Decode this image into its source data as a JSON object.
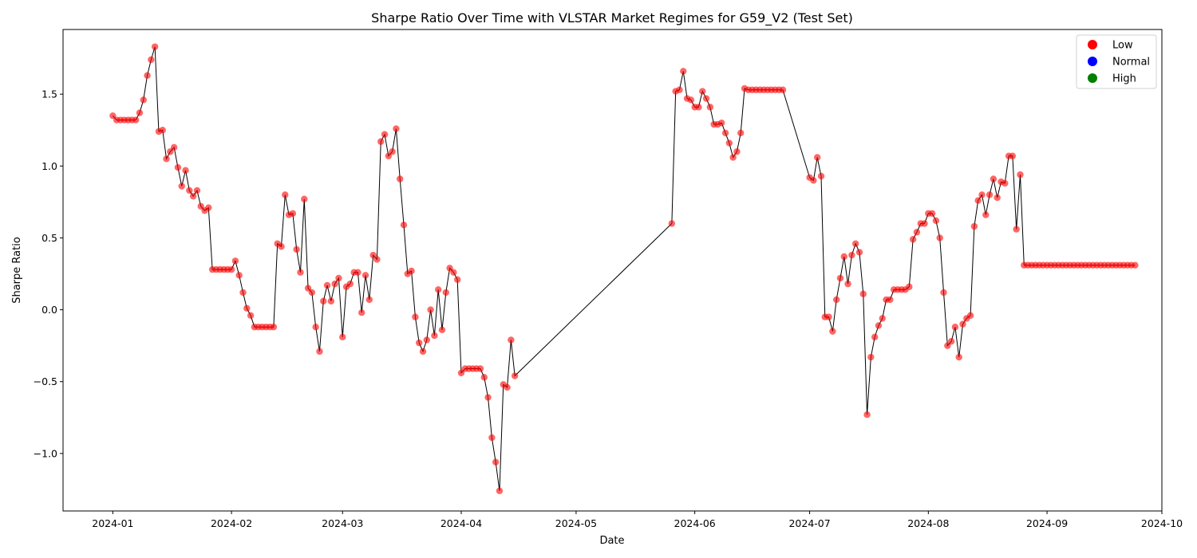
{
  "chart_data": {
    "type": "line",
    "title": "Sharpe Ratio Over Time with VLSTAR Market Regimes for G59_V2 (Test Set)",
    "xlabel": "Date",
    "ylabel": "Sharpe Ratio",
    "xlim": [
      "2023-12-19",
      "2024-10-01"
    ],
    "ylim": [
      -1.4,
      1.95
    ],
    "x_ticks": [
      "2024-01",
      "2024-02",
      "2024-03",
      "2024-04",
      "2024-05",
      "2024-06",
      "2024-07",
      "2024-08",
      "2024-09",
      "2024-10"
    ],
    "y_ticks": [
      "1.5",
      "1.0",
      "0.5",
      "0.0",
      "−0.5",
      "−1.0"
    ],
    "y_tick_values": [
      1.5,
      1.0,
      0.5,
      0.0,
      -0.5,
      -1.0
    ],
    "grid": false,
    "legend_position": "top-right",
    "legend": [
      {
        "label": "Low",
        "color": "#ff0000"
      },
      {
        "label": "Normal",
        "color": "#0000ff"
      },
      {
        "label": "High",
        "color": "#008000"
      }
    ],
    "line_color": "#000000",
    "marker_color": "#ff0000",
    "series": [
      {
        "regime": "Low",
        "points": [
          [
            "2024-01-01",
            1.35
          ],
          [
            "2024-01-02",
            1.32
          ],
          [
            "2024-01-03",
            1.32
          ],
          [
            "2024-01-04",
            1.32
          ],
          [
            "2024-01-05",
            1.32
          ],
          [
            "2024-01-06",
            1.32
          ],
          [
            "2024-01-07",
            1.32
          ],
          [
            "2024-01-08",
            1.37
          ],
          [
            "2024-01-09",
            1.46
          ],
          [
            "2024-01-10",
            1.63
          ],
          [
            "2024-01-11",
            1.74
          ],
          [
            "2024-01-12",
            1.83
          ],
          [
            "2024-01-13",
            1.24
          ],
          [
            "2024-01-14",
            1.25
          ],
          [
            "2024-01-15",
            1.05
          ],
          [
            "2024-01-16",
            1.1
          ],
          [
            "2024-01-17",
            1.13
          ],
          [
            "2024-01-18",
            0.99
          ],
          [
            "2024-01-19",
            0.86
          ],
          [
            "2024-01-20",
            0.97
          ],
          [
            "2024-01-21",
            0.83
          ],
          [
            "2024-01-22",
            0.79
          ],
          [
            "2024-01-23",
            0.83
          ],
          [
            "2024-01-24",
            0.72
          ],
          [
            "2024-01-25",
            0.69
          ],
          [
            "2024-01-26",
            0.71
          ],
          [
            "2024-01-27",
            0.28
          ],
          [
            "2024-01-28",
            0.28
          ],
          [
            "2024-01-29",
            0.28
          ],
          [
            "2024-01-30",
            0.28
          ],
          [
            "2024-01-31",
            0.28
          ],
          [
            "2024-02-01",
            0.28
          ],
          [
            "2024-02-02",
            0.34
          ],
          [
            "2024-02-03",
            0.24
          ],
          [
            "2024-02-04",
            0.12
          ],
          [
            "2024-02-05",
            0.01
          ],
          [
            "2024-02-06",
            -0.04
          ],
          [
            "2024-02-07",
            -0.12
          ],
          [
            "2024-02-08",
            -0.12
          ],
          [
            "2024-02-09",
            -0.12
          ],
          [
            "2024-02-10",
            -0.12
          ],
          [
            "2024-02-11",
            -0.12
          ],
          [
            "2024-02-12",
            -0.12
          ],
          [
            "2024-02-13",
            0.46
          ],
          [
            "2024-02-14",
            0.44
          ],
          [
            "2024-02-15",
            0.8
          ],
          [
            "2024-02-16",
            0.66
          ],
          [
            "2024-02-17",
            0.67
          ],
          [
            "2024-02-18",
            0.42
          ],
          [
            "2024-02-19",
            0.26
          ],
          [
            "2024-02-20",
            0.77
          ],
          [
            "2024-02-21",
            0.15
          ],
          [
            "2024-02-22",
            0.12
          ],
          [
            "2024-02-23",
            -0.12
          ],
          [
            "2024-02-24",
            -0.29
          ],
          [
            "2024-02-25",
            0.06
          ],
          [
            "2024-02-26",
            0.17
          ],
          [
            "2024-02-27",
            0.06
          ],
          [
            "2024-02-28",
            0.18
          ],
          [
            "2024-02-29",
            0.22
          ],
          [
            "2024-03-01",
            -0.19
          ],
          [
            "2024-03-02",
            0.16
          ],
          [
            "2024-03-03",
            0.18
          ],
          [
            "2024-03-04",
            0.26
          ],
          [
            "2024-03-05",
            0.26
          ],
          [
            "2024-03-06",
            -0.02
          ],
          [
            "2024-03-07",
            0.24
          ],
          [
            "2024-03-08",
            0.07
          ],
          [
            "2024-03-09",
            0.38
          ],
          [
            "2024-03-10",
            0.35
          ],
          [
            "2024-03-11",
            1.17
          ],
          [
            "2024-03-12",
            1.22
          ],
          [
            "2024-03-13",
            1.07
          ],
          [
            "2024-03-14",
            1.1
          ],
          [
            "2024-03-15",
            1.26
          ],
          [
            "2024-03-16",
            0.91
          ],
          [
            "2024-03-17",
            0.59
          ],
          [
            "2024-03-18",
            0.25
          ],
          [
            "2024-03-19",
            0.27
          ],
          [
            "2024-03-20",
            -0.05
          ],
          [
            "2024-03-21",
            -0.23
          ],
          [
            "2024-03-22",
            -0.29
          ],
          [
            "2024-03-23",
            -0.21
          ],
          [
            "2024-03-24",
            0.0
          ],
          [
            "2024-03-25",
            -0.18
          ],
          [
            "2024-03-26",
            0.14
          ],
          [
            "2024-03-27",
            -0.14
          ],
          [
            "2024-03-28",
            0.12
          ],
          [
            "2024-03-29",
            0.29
          ],
          [
            "2024-03-30",
            0.26
          ],
          [
            "2024-03-31",
            0.21
          ],
          [
            "2024-04-01",
            -0.44
          ],
          [
            "2024-04-02",
            -0.41
          ],
          [
            "2024-04-03",
            -0.41
          ],
          [
            "2024-04-04",
            -0.41
          ],
          [
            "2024-04-05",
            -0.41
          ],
          [
            "2024-04-06",
            -0.41
          ],
          [
            "2024-04-07",
            -0.47
          ],
          [
            "2024-04-08",
            -0.61
          ],
          [
            "2024-04-09",
            -0.89
          ],
          [
            "2024-04-10",
            -1.06
          ],
          [
            "2024-04-11",
            -1.26
          ],
          [
            "2024-04-12",
            -0.52
          ],
          [
            "2024-04-13",
            -0.54
          ],
          [
            "2024-04-14",
            -0.21
          ],
          [
            "2024-04-15",
            -0.46
          ],
          [
            "2024-05-26",
            0.6
          ],
          [
            "2024-05-27",
            1.52
          ],
          [
            "2024-05-28",
            1.53
          ],
          [
            "2024-05-29",
            1.66
          ],
          [
            "2024-05-30",
            1.47
          ],
          [
            "2024-05-31",
            1.46
          ],
          [
            "2024-06-01",
            1.41
          ],
          [
            "2024-06-02",
            1.41
          ],
          [
            "2024-06-03",
            1.52
          ],
          [
            "2024-06-04",
            1.47
          ],
          [
            "2024-06-05",
            1.41
          ],
          [
            "2024-06-06",
            1.29
          ],
          [
            "2024-06-07",
            1.29
          ],
          [
            "2024-06-08",
            1.3
          ],
          [
            "2024-06-09",
            1.23
          ],
          [
            "2024-06-10",
            1.16
          ],
          [
            "2024-06-11",
            1.06
          ],
          [
            "2024-06-12",
            1.1
          ],
          [
            "2024-06-13",
            1.23
          ],
          [
            "2024-06-14",
            1.54
          ],
          [
            "2024-06-15",
            1.53
          ],
          [
            "2024-06-16",
            1.53
          ],
          [
            "2024-06-17",
            1.53
          ],
          [
            "2024-06-18",
            1.53
          ],
          [
            "2024-06-19",
            1.53
          ],
          [
            "2024-06-20",
            1.53
          ],
          [
            "2024-06-21",
            1.53
          ],
          [
            "2024-06-22",
            1.53
          ],
          [
            "2024-06-23",
            1.53
          ],
          [
            "2024-06-24",
            1.53
          ],
          [
            "2024-07-01",
            0.92
          ],
          [
            "2024-07-02",
            0.9
          ],
          [
            "2024-07-03",
            1.06
          ],
          [
            "2024-07-04",
            0.93
          ],
          [
            "2024-07-05",
            -0.05
          ],
          [
            "2024-07-06",
            -0.05
          ],
          [
            "2024-07-07",
            -0.15
          ],
          [
            "2024-07-08",
            0.07
          ],
          [
            "2024-07-09",
            0.22
          ],
          [
            "2024-07-10",
            0.37
          ],
          [
            "2024-07-11",
            0.18
          ],
          [
            "2024-07-12",
            0.38
          ],
          [
            "2024-07-13",
            0.46
          ],
          [
            "2024-07-14",
            0.4
          ],
          [
            "2024-07-15",
            0.11
          ],
          [
            "2024-07-16",
            -0.73
          ],
          [
            "2024-07-17",
            -0.33
          ],
          [
            "2024-07-18",
            -0.19
          ],
          [
            "2024-07-19",
            -0.11
          ],
          [
            "2024-07-20",
            -0.06
          ],
          [
            "2024-07-21",
            0.07
          ],
          [
            "2024-07-22",
            0.07
          ],
          [
            "2024-07-23",
            0.14
          ],
          [
            "2024-07-24",
            0.14
          ],
          [
            "2024-07-25",
            0.14
          ],
          [
            "2024-07-26",
            0.14
          ],
          [
            "2024-07-27",
            0.16
          ],
          [
            "2024-07-28",
            0.49
          ],
          [
            "2024-07-29",
            0.54
          ],
          [
            "2024-07-30",
            0.6
          ],
          [
            "2024-07-31",
            0.6
          ],
          [
            "2024-08-01",
            0.67
          ],
          [
            "2024-08-02",
            0.67
          ],
          [
            "2024-08-03",
            0.62
          ],
          [
            "2024-08-04",
            0.5
          ],
          [
            "2024-08-05",
            0.12
          ],
          [
            "2024-08-06",
            -0.25
          ],
          [
            "2024-08-07",
            -0.22
          ],
          [
            "2024-08-08",
            -0.12
          ],
          [
            "2024-08-09",
            -0.33
          ],
          [
            "2024-08-10",
            -0.1
          ],
          [
            "2024-08-11",
            -0.06
          ],
          [
            "2024-08-12",
            -0.04
          ],
          [
            "2024-08-13",
            0.58
          ],
          [
            "2024-08-14",
            0.76
          ],
          [
            "2024-08-15",
            0.8
          ],
          [
            "2024-08-16",
            0.66
          ],
          [
            "2024-08-17",
            0.8
          ],
          [
            "2024-08-18",
            0.91
          ],
          [
            "2024-08-19",
            0.78
          ],
          [
            "2024-08-20",
            0.89
          ],
          [
            "2024-08-21",
            0.88
          ],
          [
            "2024-08-22",
            1.07
          ],
          [
            "2024-08-23",
            1.07
          ],
          [
            "2024-08-24",
            0.56
          ],
          [
            "2024-08-25",
            0.94
          ],
          [
            "2024-08-26",
            0.31
          ],
          [
            "2024-08-27",
            0.31
          ],
          [
            "2024-08-28",
            0.31
          ],
          [
            "2024-08-29",
            0.31
          ],
          [
            "2024-08-30",
            0.31
          ],
          [
            "2024-08-31",
            0.31
          ],
          [
            "2024-09-01",
            0.31
          ],
          [
            "2024-09-02",
            0.31
          ],
          [
            "2024-09-03",
            0.31
          ],
          [
            "2024-09-04",
            0.31
          ],
          [
            "2024-09-05",
            0.31
          ],
          [
            "2024-09-06",
            0.31
          ],
          [
            "2024-09-07",
            0.31
          ],
          [
            "2024-09-08",
            0.31
          ],
          [
            "2024-09-09",
            0.31
          ],
          [
            "2024-09-10",
            0.31
          ],
          [
            "2024-09-11",
            0.31
          ],
          [
            "2024-09-12",
            0.31
          ],
          [
            "2024-09-13",
            0.31
          ],
          [
            "2024-09-14",
            0.31
          ],
          [
            "2024-09-15",
            0.31
          ],
          [
            "2024-09-16",
            0.31
          ],
          [
            "2024-09-17",
            0.31
          ],
          [
            "2024-09-18",
            0.31
          ],
          [
            "2024-09-19",
            0.31
          ],
          [
            "2024-09-20",
            0.31
          ],
          [
            "2024-09-21",
            0.31
          ],
          [
            "2024-09-22",
            0.31
          ],
          [
            "2024-09-23",
            0.31
          ],
          [
            "2024-09-24",
            0.31
          ]
        ]
      }
    ]
  }
}
